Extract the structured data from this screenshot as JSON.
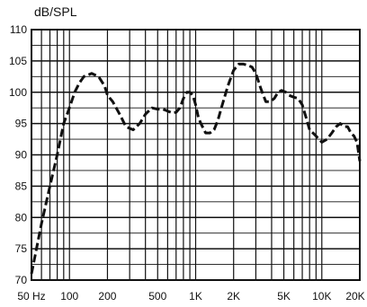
{
  "chart_data": {
    "type": "line",
    "ylabel": "dB/SPL",
    "xscale": "log",
    "xlim": [
      50,
      20000
    ],
    "ylim": [
      70,
      110
    ],
    "grid": true,
    "x_tick_labels": [
      {
        "value": 50,
        "label": "50 Hz"
      },
      {
        "value": 100,
        "label": "100"
      },
      {
        "value": 200,
        "label": "200"
      },
      {
        "value": 500,
        "label": "500"
      },
      {
        "value": 1000,
        "label": "1K"
      },
      {
        "value": 2000,
        "label": "2K"
      },
      {
        "value": 5000,
        "label": "5K"
      },
      {
        "value": 10000,
        "label": "10K"
      },
      {
        "value": 20000,
        "label": "20K"
      }
    ],
    "y_ticks": [
      70,
      75,
      80,
      85,
      90,
      95,
      100,
      105,
      110
    ],
    "x_gridlines": [
      50,
      60,
      70,
      80,
      90,
      100,
      200,
      300,
      400,
      500,
      600,
      700,
      800,
      900,
      1000,
      2000,
      3000,
      4000,
      5000,
      6000,
      7000,
      8000,
      9000,
      10000,
      20000
    ],
    "y_minor_step": 2.5,
    "series": [
      {
        "line_style": "dashed",
        "color": "#111111",
        "x": [
          50,
          60,
          70,
          80,
          90,
          100,
          110,
          120,
          130,
          150,
          170,
          190,
          200,
          220,
          250,
          280,
          320,
          360,
          400,
          450,
          500,
          550,
          600,
          650,
          700,
          750,
          800,
          850,
          900,
          950,
          1000,
          1050,
          1100,
          1200,
          1300,
          1400,
          1500,
          1600,
          1800,
          2000,
          2200,
          2400,
          2600,
          2800,
          3000,
          3300,
          3600,
          3900,
          4200,
          4500,
          4800,
          5200,
          5500,
          6000,
          6500,
          7000,
          7500,
          8000,
          8500,
          9000,
          9500,
          10000,
          11000,
          12000,
          13000,
          14000,
          15000,
          16000,
          17000,
          18000,
          19000,
          20000
        ],
        "y": [
          71,
          79,
          85,
          90,
          95,
          97.5,
          100,
          101.5,
          102.5,
          103,
          102.5,
          101,
          99.5,
          98.5,
          96.5,
          94.5,
          94,
          95,
          96.5,
          97.5,
          97.3,
          97.3,
          97,
          96.7,
          96.8,
          97.5,
          99,
          100,
          100,
          99.5,
          98,
          96,
          95,
          93.5,
          93.5,
          94,
          95.5,
          97.5,
          101,
          103.5,
          104.5,
          104.5,
          104.3,
          104,
          103,
          100.5,
          98.5,
          98.5,
          99,
          100,
          100.3,
          100,
          99.5,
          99.2,
          99,
          98,
          96,
          94,
          93.5,
          93,
          92.5,
          92,
          92.5,
          93.5,
          94.5,
          95,
          94.5,
          94.5,
          93.5,
          93,
          92,
          89
        ]
      }
    ]
  }
}
